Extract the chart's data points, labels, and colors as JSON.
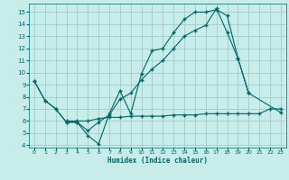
{
  "bg_color": "#c8ecea",
  "grid_color": "#a0ccca",
  "line_color": "#006666",
  "xlabel": "Humidex (Indice chaleur)",
  "xlim": [
    -0.5,
    23.5
  ],
  "ylim": [
    3.8,
    15.7
  ],
  "yticks": [
    4,
    5,
    6,
    7,
    8,
    9,
    10,
    11,
    12,
    13,
    14,
    15
  ],
  "xticks": [
    0,
    1,
    2,
    3,
    4,
    5,
    6,
    7,
    8,
    9,
    10,
    11,
    12,
    13,
    14,
    15,
    16,
    17,
    18,
    19,
    20,
    21,
    22,
    23
  ],
  "line1_x": [
    0,
    1,
    2,
    3,
    4,
    5,
    6,
    7,
    8,
    9,
    10,
    11,
    12,
    13,
    14,
    15,
    16,
    17,
    18,
    19,
    20
  ],
  "line1_y": [
    9.3,
    7.7,
    7.0,
    5.9,
    5.9,
    4.8,
    4.1,
    6.6,
    8.5,
    6.6,
    9.9,
    11.8,
    12.0,
    13.3,
    14.4,
    15.0,
    15.0,
    15.2,
    14.7,
    11.2,
    8.3
  ],
  "line2_x": [
    0,
    1,
    2,
    3,
    4,
    5,
    6,
    7,
    8,
    9,
    10,
    11,
    12,
    13,
    14,
    15,
    16,
    17,
    18,
    19,
    20,
    23
  ],
  "line2_y": [
    9.3,
    7.7,
    7.0,
    5.9,
    5.9,
    5.2,
    5.9,
    6.5,
    7.8,
    8.3,
    9.4,
    10.3,
    11.0,
    12.0,
    13.0,
    13.5,
    13.9,
    15.3,
    13.3,
    11.2,
    8.3,
    6.7
  ],
  "line3_x": [
    3,
    4,
    5,
    6,
    7,
    8,
    9,
    10,
    11,
    12,
    13,
    14,
    15,
    16,
    17,
    18,
    19,
    20,
    21,
    22,
    23
  ],
  "line3_y": [
    6.0,
    6.0,
    6.0,
    6.2,
    6.3,
    6.3,
    6.4,
    6.4,
    6.4,
    6.4,
    6.5,
    6.5,
    6.5,
    6.6,
    6.6,
    6.6,
    6.6,
    6.6,
    6.6,
    7.0,
    7.0
  ]
}
